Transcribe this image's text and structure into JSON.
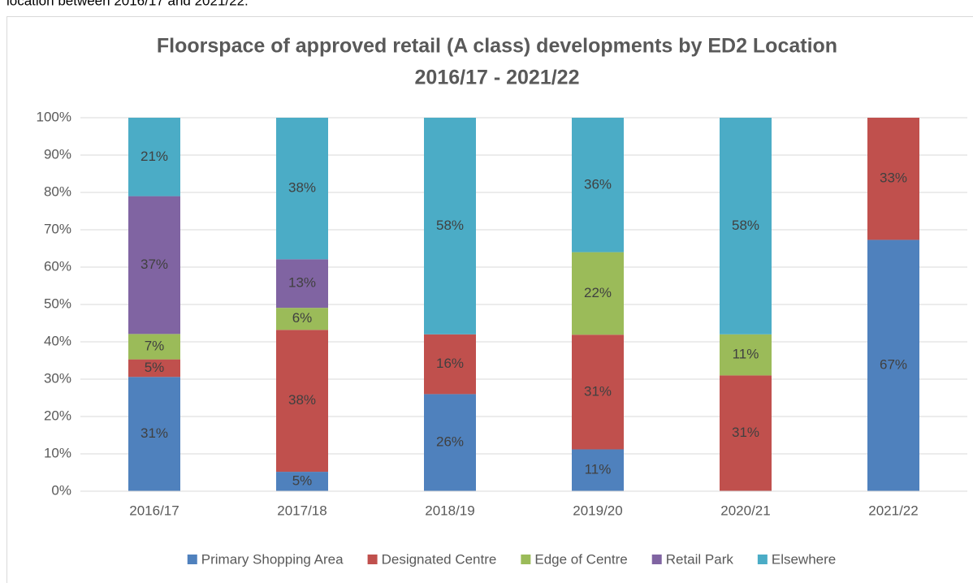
{
  "intro": "location between 2016/17 and 2021/22.",
  "chart_data": {
    "type": "stacked_bar_100",
    "title": [
      "Floorspace of approved retail (A class) developments by ED2 Location",
      "2016/17 - 2021/22"
    ],
    "categories": [
      "2016/17",
      "2017/18",
      "2018/19",
      "2019/20",
      "2020/21",
      "2021/22"
    ],
    "series": [
      {
        "name": "Primary Shopping Area",
        "color": "#4f81bd",
        "values": [
          30.6,
          5.2,
          26,
          11.2,
          0,
          67.3
        ],
        "value_labels": [
          "31%",
          "5%",
          "26%",
          "11%",
          null,
          "67%"
        ]
      },
      {
        "name": "Designated Centre",
        "color": "#c0504d",
        "values": [
          4.7,
          38,
          16,
          30.7,
          31,
          32.7
        ],
        "value_labels": [
          "5%",
          "38%",
          "16%",
          "31%",
          "31%",
          "33%"
        ]
      },
      {
        "name": "Edge of Centre",
        "color": "#9bbb59",
        "values": [
          6.8,
          5.9,
          0,
          22.1,
          11,
          0
        ],
        "value_labels": [
          "7%",
          "6%",
          null,
          "22%",
          "11%",
          null
        ]
      },
      {
        "name": "Retail Park",
        "color": "#8064a2",
        "values": [
          36.9,
          13,
          0,
          0,
          0,
          0
        ],
        "value_labels": [
          "37%",
          "13%",
          null,
          null,
          null,
          null
        ]
      },
      {
        "name": "Elsewhere",
        "color": "#4bacc6",
        "values": [
          21,
          37.9,
          58,
          36,
          58,
          0
        ],
        "value_labels": [
          "21%",
          "38%",
          "58%",
          "36%",
          "58%",
          null
        ]
      }
    ],
    "ylim": [
      0,
      100
    ],
    "yticks": [
      {
        "value": 0,
        "label": "0%"
      },
      {
        "value": 10,
        "label": "10%"
      },
      {
        "value": 20,
        "label": "20%"
      },
      {
        "value": 30,
        "label": "30%"
      },
      {
        "value": 40,
        "label": "40%"
      },
      {
        "value": 50,
        "label": "50%"
      },
      {
        "value": 60,
        "label": "60%"
      },
      {
        "value": 70,
        "label": "70%"
      },
      {
        "value": 80,
        "label": "80%"
      },
      {
        "value": 90,
        "label": "90%"
      },
      {
        "value": 100,
        "label": "100%"
      }
    ],
    "grid": true,
    "legend": "bottom"
  }
}
